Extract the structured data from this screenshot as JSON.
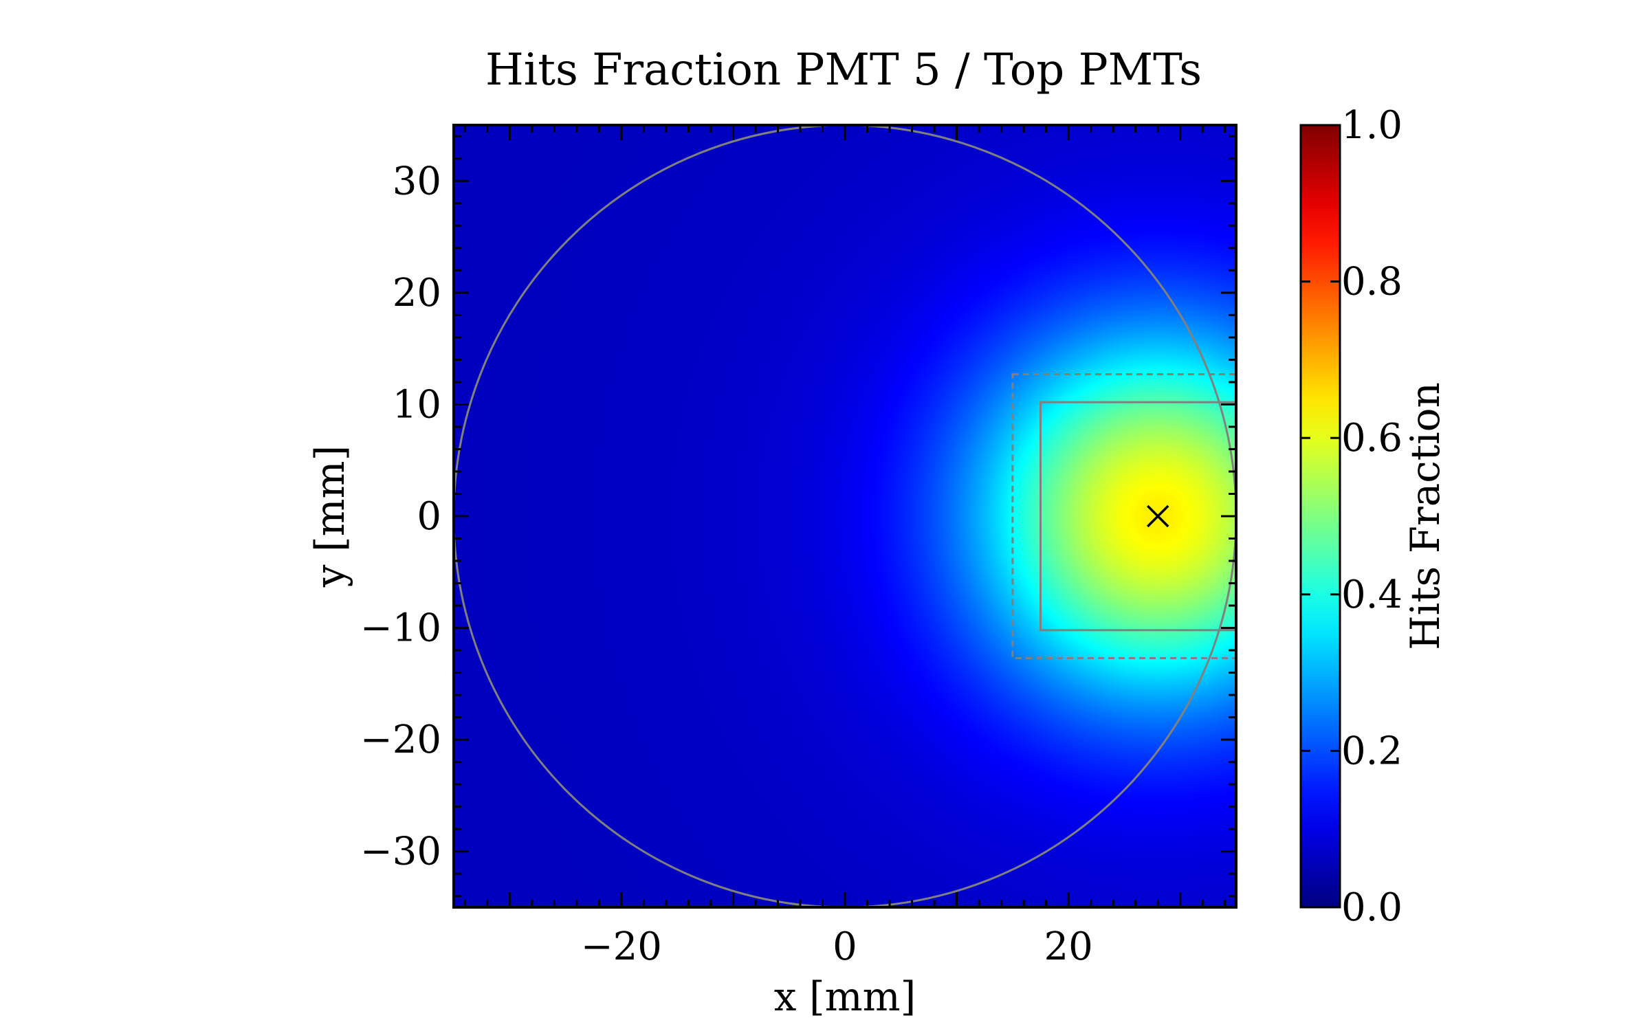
{
  "chart_data": {
    "type": "heatmap",
    "title": "Hits Fraction PMT 5 / Top PMTs",
    "xlabel": "x [mm]",
    "ylabel": "y [mm]",
    "xlim": [
      -35,
      35
    ],
    "ylim": [
      -35,
      35
    ],
    "x_ticks": [
      {
        "value": -20,
        "label": "−20"
      },
      {
        "value": 0,
        "label": "0"
      },
      {
        "value": 20,
        "label": "20"
      }
    ],
    "y_ticks": [
      {
        "value": 30,
        "label": "30"
      },
      {
        "value": 20,
        "label": "20"
      },
      {
        "value": 10,
        "label": "10"
      },
      {
        "value": 0,
        "label": "0"
      },
      {
        "value": -10,
        "label": "−10"
      },
      {
        "value": -20,
        "label": "−20"
      },
      {
        "value": -30,
        "label": "−30"
      }
    ],
    "colorbar": {
      "label": "Hits Fraction",
      "colormap": "jet",
      "range": [
        0.0,
        1.0
      ],
      "ticks": [
        {
          "value": 0.0,
          "label": "0.0"
        },
        {
          "value": 0.2,
          "label": "0.2"
        },
        {
          "value": 0.4,
          "label": "0.4"
        },
        {
          "value": 0.6,
          "label": "0.6"
        },
        {
          "value": 0.8,
          "label": "0.8"
        },
        {
          "value": 1.0,
          "label": "1.0"
        }
      ]
    },
    "field": {
      "peak_center": [
        28,
        0
      ],
      "peak_value": 0.6,
      "baseline_value": 0.06
    },
    "overlays": {
      "detector_circle": {
        "center": [
          0,
          0
        ],
        "radius": 35,
        "color": "#808080"
      },
      "pmt_active_area": {
        "x_range": [
          17.5,
          35
        ],
        "y_range": [
          -10.2,
          10.2
        ],
        "color": "#808080",
        "style": "solid"
      },
      "pmt_outline": {
        "x_range": [
          15,
          35
        ],
        "y_range": [
          -12.7,
          12.7
        ],
        "color": "#808080",
        "style": "dashed"
      },
      "pmt_center_marker": {
        "x": 28,
        "y": 0,
        "symbol": "x",
        "color": "#000000"
      }
    }
  }
}
